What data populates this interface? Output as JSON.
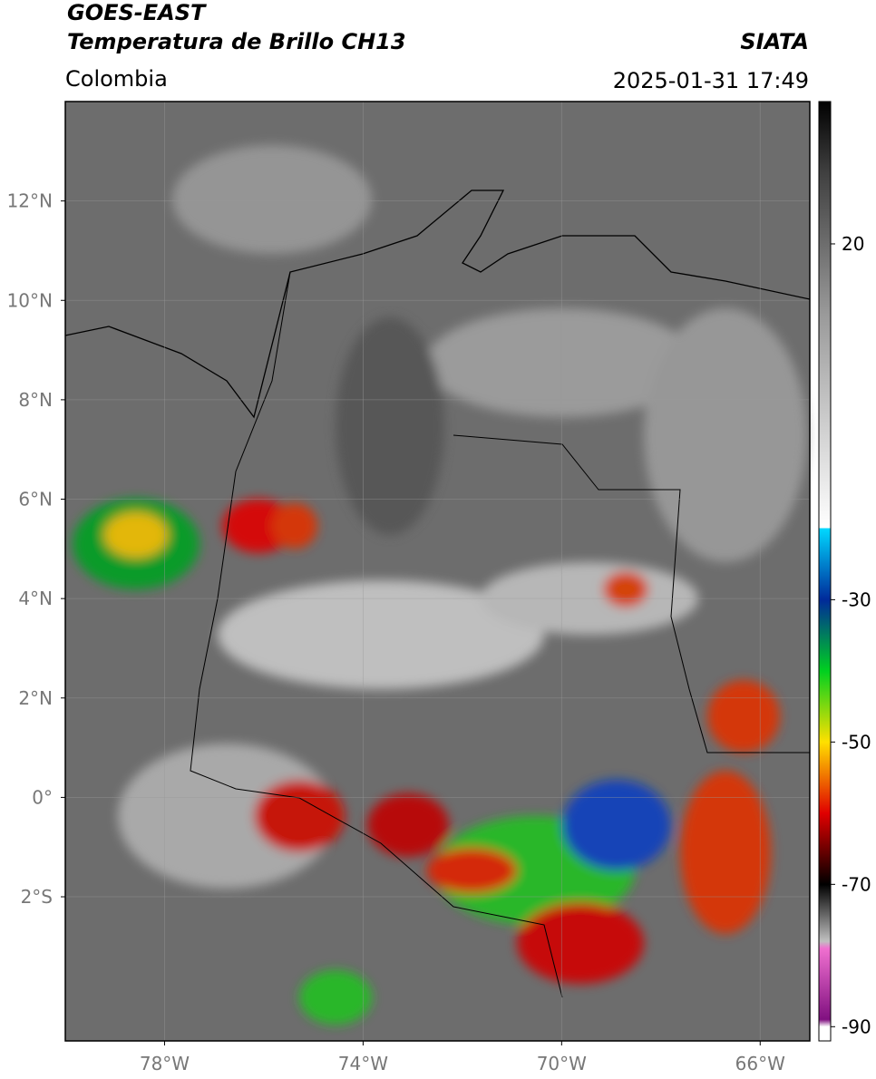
{
  "header": {
    "title": "GOES-EAST",
    "subtitle": "Temperatura de Brillo CH13",
    "source": "SIATA",
    "region": "Colombia",
    "datetime": "2025-01-31 17:49"
  },
  "map": {
    "xlim": [
      -80,
      -65
    ],
    "ylim": [
      -4.9,
      14
    ],
    "grid": true,
    "xticks": [
      {
        "value": -78,
        "label": "78°W"
      },
      {
        "value": -74,
        "label": "74°W"
      },
      {
        "value": -70,
        "label": "70°W"
      },
      {
        "value": -66,
        "label": "66°W"
      }
    ],
    "yticks": [
      {
        "value": 12,
        "label": "12°N"
      },
      {
        "value": 10,
        "label": "10°N"
      },
      {
        "value": 8,
        "label": "8°N"
      },
      {
        "value": 6,
        "label": "6°N"
      },
      {
        "value": 4,
        "label": "4°N"
      },
      {
        "value": 2,
        "label": "2°N"
      },
      {
        "value": 0,
        "label": "0°"
      },
      {
        "value": -2,
        "label": "2°S"
      }
    ]
  },
  "colorbar": {
    "lim": [
      -92,
      40
    ],
    "ticks": [
      20,
      -30,
      -50,
      -70,
      -90
    ],
    "stops": [
      {
        "value": 40,
        "color": "#000000"
      },
      {
        "value": 30,
        "color": "#404040"
      },
      {
        "value": 10,
        "color": "#9a9a9a"
      },
      {
        "value": -19.9,
        "color": "#ffffff"
      },
      {
        "value": -20,
        "color": "#00d8ff"
      },
      {
        "value": -30,
        "color": "#002a9a"
      },
      {
        "value": -40,
        "color": "#00d020"
      },
      {
        "value": -50,
        "color": "#ffe000"
      },
      {
        "value": -60,
        "color": "#e00000"
      },
      {
        "value": -70,
        "color": "#000000"
      },
      {
        "value": -78,
        "color": "#c0c0c0"
      },
      {
        "value": -79,
        "color": "#f070d0"
      },
      {
        "value": -89,
        "color": "#801080"
      },
      {
        "value": -90,
        "color": "#ffffff"
      }
    ]
  }
}
